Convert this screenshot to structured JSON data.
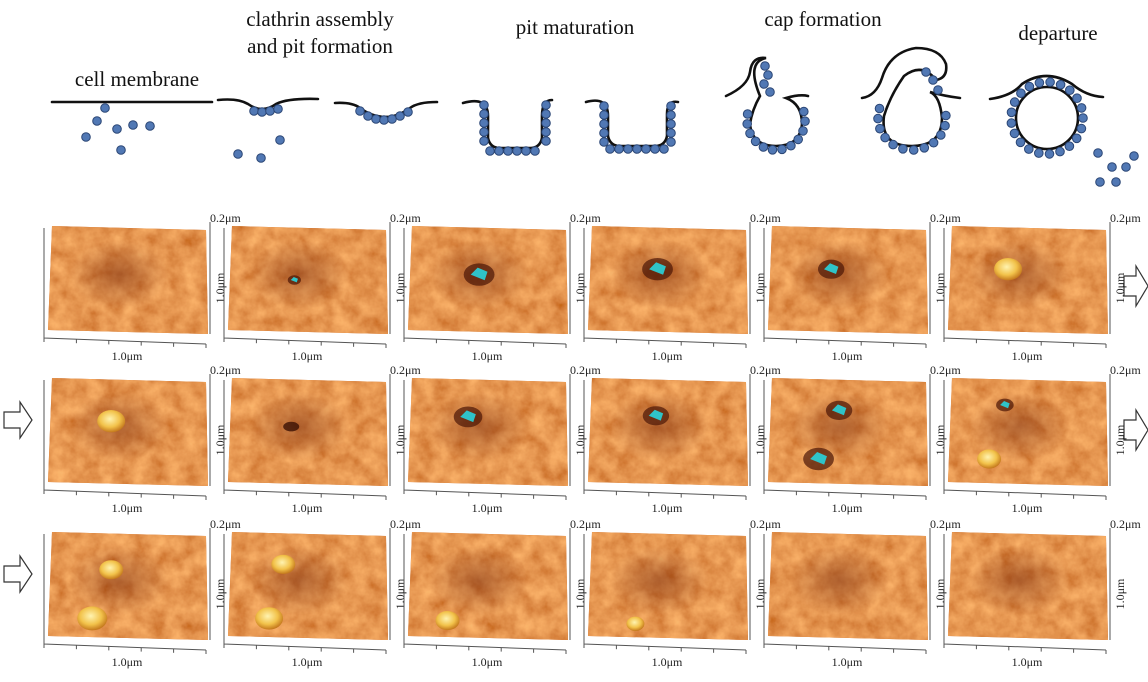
{
  "stages": [
    {
      "lines": [
        "cell membrane"
      ]
    },
    {
      "lines": [
        "clathrin assembly",
        "and pit formation"
      ]
    },
    {
      "lines": [
        "pit maturation"
      ]
    },
    {
      "lines": [
        "cap formation"
      ]
    },
    {
      "lines": [
        "departure"
      ]
    }
  ],
  "scale_labels": {
    "height": "0.2μm",
    "depth": "1.0μm",
    "width": "1.0μm"
  }
}
